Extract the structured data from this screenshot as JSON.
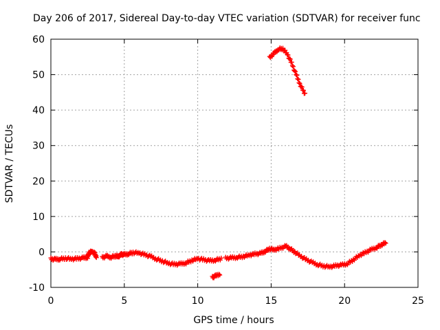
{
  "chart_data": {
    "type": "scatter",
    "title": "Day 206 of 2017, Sidereal Day-to-day VTEC variation (SDTVAR) for receiver func",
    "xlabel": "GPS time / hours",
    "ylabel": "SDTVAR / TECUs",
    "xlim": [
      0,
      25
    ],
    "ylim": [
      -10,
      60
    ],
    "xticks": [
      0,
      5,
      10,
      15,
      20,
      25
    ],
    "yticks": [
      -10,
      0,
      10,
      20,
      30,
      40,
      50,
      60
    ],
    "grid": true,
    "marker": "+",
    "series": [
      {
        "name": "SDTVAR",
        "color": "#ff0000",
        "segments": [
          {
            "points": [
              [
                0.0,
                -2.0
              ],
              [
                0.3,
                -2.1
              ],
              [
                0.6,
                -2.0
              ],
              [
                1.0,
                -1.8
              ],
              [
                1.4,
                -2.0
              ],
              [
                1.8,
                -1.9
              ],
              [
                2.2,
                -1.7
              ],
              [
                2.5,
                -1.5
              ],
              [
                2.6,
                -0.2
              ],
              [
                2.8,
                0.1
              ],
              [
                3.0,
                -0.5
              ],
              [
                3.1,
                -1.6
              ]
            ]
          },
          {
            "points": [
              [
                3.5,
                -1.6
              ],
              [
                3.8,
                -1.2
              ],
              [
                4.1,
                -1.5
              ],
              [
                4.4,
                -1.1
              ],
              [
                4.6,
                -1.3
              ],
              [
                4.8,
                -0.7
              ],
              [
                5.0,
                -0.8
              ],
              [
                5.3,
                -0.5
              ],
              [
                5.6,
                -0.2
              ],
              [
                6.0,
                -0.3
              ],
              [
                6.4,
                -0.8
              ],
              [
                6.8,
                -1.3
              ],
              [
                7.2,
                -2.0
              ],
              [
                7.6,
                -2.6
              ],
              [
                8.0,
                -3.2
              ],
              [
                8.4,
                -3.5
              ],
              [
                8.8,
                -3.4
              ],
              [
                9.2,
                -3.1
              ],
              [
                9.6,
                -2.4
              ],
              [
                10.0,
                -1.9
              ],
              [
                10.4,
                -2.2
              ],
              [
                10.8,
                -2.5
              ],
              [
                11.2,
                -2.3
              ],
              [
                11.6,
                -1.9
              ]
            ]
          },
          {
            "points": [
              [
                11.0,
                -7.2
              ],
              [
                11.2,
                -6.8
              ],
              [
                11.5,
                -6.2
              ]
            ]
          },
          {
            "points": [
              [
                11.9,
                -1.8
              ],
              [
                12.3,
                -1.7
              ],
              [
                12.7,
                -1.5
              ],
              [
                13.1,
                -1.3
              ],
              [
                13.5,
                -0.9
              ],
              [
                13.9,
                -0.6
              ],
              [
                14.3,
                -0.4
              ],
              [
                14.6,
                0.2
              ],
              [
                14.9,
                0.9
              ],
              [
                15.2,
                0.6
              ],
              [
                15.6,
                1.0
              ],
              [
                16.0,
                1.6
              ],
              [
                16.3,
                0.9
              ],
              [
                16.6,
                0.0
              ],
              [
                17.0,
                -1.2
              ],
              [
                17.4,
                -2.2
              ],
              [
                17.8,
                -3.0
              ],
              [
                18.2,
                -3.6
              ],
              [
                18.6,
                -4.0
              ],
              [
                19.0,
                -4.2
              ],
              [
                19.4,
                -3.9
              ],
              [
                19.8,
                -3.7
              ],
              [
                20.2,
                -3.3
              ],
              [
                20.6,
                -2.2
              ],
              [
                21.0,
                -1.0
              ],
              [
                21.4,
                -0.2
              ],
              [
                21.8,
                0.6
              ],
              [
                22.2,
                1.3
              ],
              [
                22.5,
                2.0
              ],
              [
                22.8,
                2.6
              ]
            ]
          },
          {
            "points": [
              [
                14.9,
                54.8
              ],
              [
                15.2,
                56.0
              ],
              [
                15.5,
                57.2
              ],
              [
                15.8,
                57.3
              ],
              [
                16.1,
                55.8
              ],
              [
                16.4,
                53.2
              ],
              [
                16.7,
                50.0
              ],
              [
                17.0,
                47.0
              ],
              [
                17.3,
                44.6
              ]
            ]
          }
        ]
      }
    ]
  }
}
